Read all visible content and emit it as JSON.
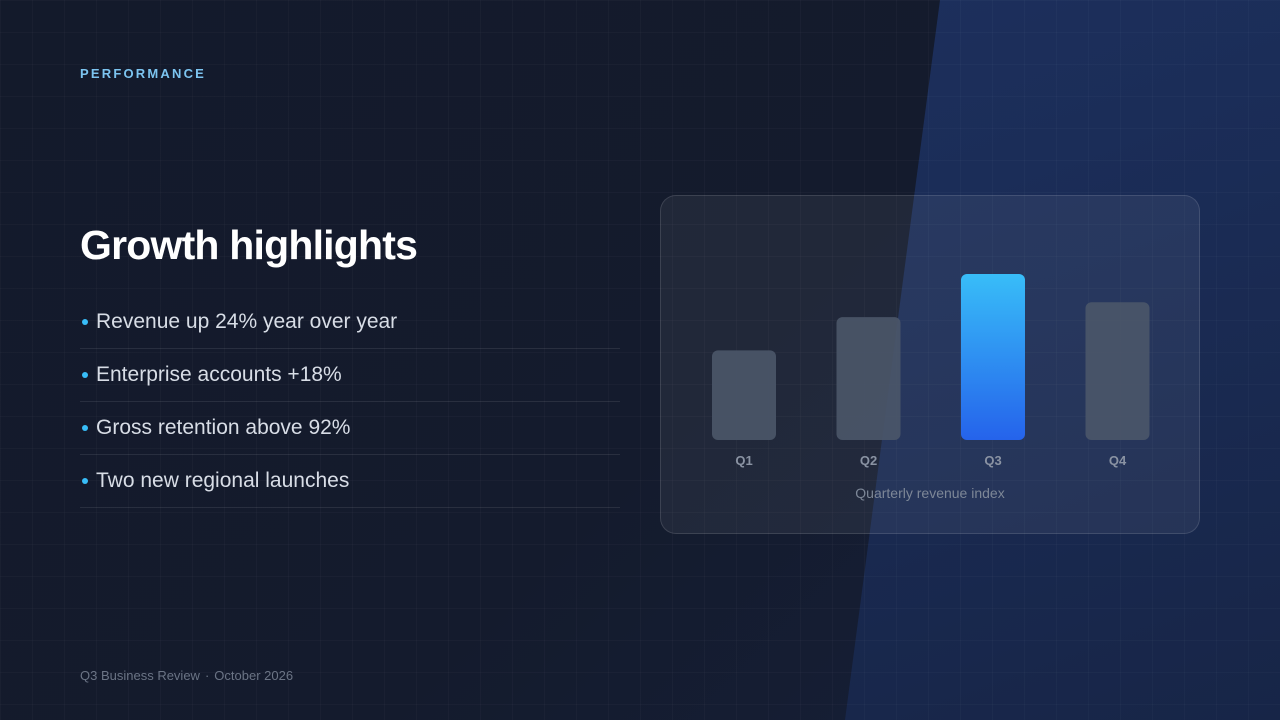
{
  "eyebrow": "PERFORMANCE",
  "title": "Growth highlights",
  "bullets": [
    "Revenue up 24% year over year",
    "Enterprise accounts +18%",
    "Gross retention above 92%",
    "Two new regional launches"
  ],
  "footer": {
    "left": "Q3 Business Review",
    "separator": "·",
    "right": "October 2026"
  },
  "colors": {
    "accent": "#38bdf8",
    "highlight_bar_top": "#38bdf8",
    "highlight_bar_bottom": "#2563eb",
    "muted_bar": "#4b5669"
  },
  "chart_data": {
    "type": "bar",
    "title": "",
    "caption": "Quarterly revenue index",
    "categories": [
      "Q1",
      "Q2",
      "Q3",
      "Q4"
    ],
    "values": [
      54,
      74,
      100,
      83
    ],
    "highlight": "Q3",
    "ylim": [
      0,
      100
    ],
    "grid": false,
    "legend": "none"
  }
}
